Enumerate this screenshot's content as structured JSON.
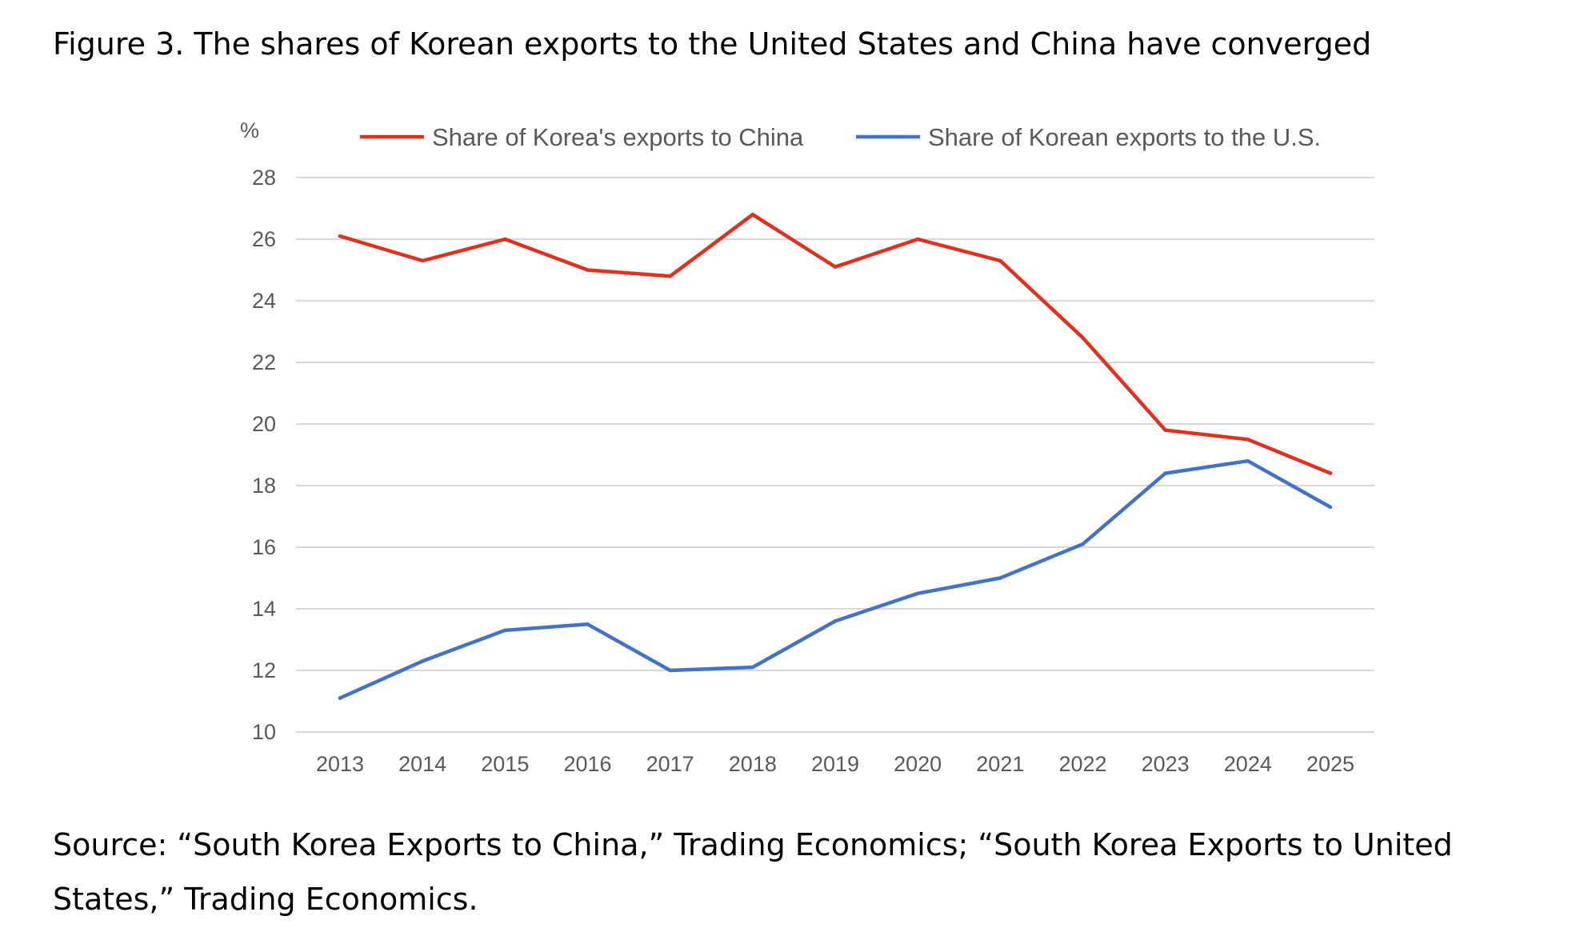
{
  "figure": {
    "title": "Figure 3. The shares of Korean exports to the United States and China have converged",
    "source": "Source: “South Korea Exports to China,” Trading Economics; “South Korea Exports to United States,” Trading Economics."
  },
  "chart_data": {
    "type": "line",
    "x": [
      "2013",
      "2014",
      "2015",
      "2016",
      "2017",
      "2018",
      "2019",
      "2020",
      "2021",
      "2022",
      "2023",
      "2024",
      "2025"
    ],
    "y_unit": "%",
    "ylim": [
      10,
      28
    ],
    "yticks": [
      "10",
      "12",
      "14",
      "16",
      "18",
      "20",
      "22",
      "24",
      "26",
      "28"
    ],
    "grid": "horizontal",
    "legend_position": "top",
    "series": [
      {
        "name": "Share of Korea's exports to China",
        "color": "#e0301e",
        "values": [
          26.1,
          25.3,
          26.0,
          25.0,
          24.8,
          26.8,
          25.1,
          26.0,
          25.3,
          22.8,
          19.8,
          19.5,
          18.4
        ]
      },
      {
        "name": "Share of Korean exports to the U.S.",
        "color": "#4472c4",
        "values": [
          11.1,
          12.3,
          13.3,
          13.5,
          12.0,
          12.1,
          13.6,
          14.5,
          15.0,
          16.1,
          18.4,
          18.8,
          17.3
        ]
      }
    ]
  }
}
